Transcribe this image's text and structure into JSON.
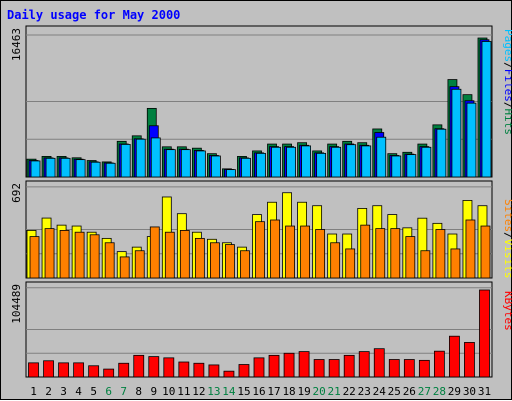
{
  "chart_data": {
    "type": "bar",
    "title": "Daily usage for May 2000",
    "x": [
      "1",
      "2",
      "3",
      "4",
      "5",
      "6",
      "7",
      "8",
      "9",
      "10",
      "11",
      "12",
      "13",
      "14",
      "15",
      "16",
      "17",
      "18",
      "19",
      "20",
      "21",
      "22",
      "23",
      "24",
      "25",
      "26",
      "27",
      "28",
      "29",
      "30",
      "31"
    ],
    "weekend_days": [
      "6",
      "7",
      "13",
      "14",
      "20",
      "21",
      "27",
      "28"
    ],
    "panels": [
      {
        "name": "hits_files_pages",
        "ymax": 16463,
        "ymax_label": "16463",
        "legend": [
          {
            "text": "Pages",
            "color": "#00c0ff"
          },
          {
            "text": "/",
            "color": "#000000"
          },
          {
            "text": "Files",
            "color": "#0000ff"
          },
          {
            "text": "/",
            "color": "#000000"
          },
          {
            "text": "Hits",
            "color": "#008040"
          }
        ],
        "series": [
          {
            "name": "Hits",
            "color": "#008040",
            "values": [
              2054,
              2370,
              2370,
              2212,
              1896,
              1738,
              4108,
              4740,
              7900,
              3476,
              3476,
              3318,
              2686,
              940,
              2370,
              3002,
              3792,
              3792,
              3950,
              3002,
              3792,
              4108,
              3950,
              5530,
              2686,
              2844,
              3792,
              6004,
              11218,
              9480,
              16000
            ]
          },
          {
            "name": "Files",
            "color": "#0000ff",
            "values": [
              1900,
              2200,
              2200,
              2050,
              1750,
              1620,
              3800,
              4400,
              5900,
              3200,
              3200,
              3060,
              2480,
              870,
              2200,
              2780,
              3500,
              3500,
              3650,
              2780,
              3500,
              3800,
              3650,
              5120,
              2480,
              2630,
              3500,
              5560,
              10400,
              8780,
              15800
            ]
          },
          {
            "name": "Pages",
            "color": "#00c0ff",
            "values": [
              1850,
              2150,
              2150,
              2000,
              1700,
              1580,
              3750,
              4350,
              4500,
              3150,
              3150,
              3000,
              2420,
              850,
              2150,
              2720,
              3420,
              3420,
              3580,
              2720,
              3420,
              3720,
              3580,
              4580,
              2420,
              2580,
              3420,
              5500,
              10100,
              8500,
              15600
            ]
          }
        ]
      },
      {
        "name": "visits_sites",
        "ymax": 692,
        "ymax_label": "692",
        "legend": [
          {
            "text": "Sites",
            "color": "#ff8000"
          },
          {
            "text": "/",
            "color": "#000000"
          },
          {
            "text": "Visits",
            "color": "#ffff00"
          }
        ],
        "series": [
          {
            "name": "Visits",
            "color": "#ffff00",
            "values": [
              370,
              466,
              411,
              404,
              356,
              308,
              205,
              240,
              322,
              630,
              500,
              356,
              301,
              274,
              240,
              493,
              589,
              663,
              589,
              562,
              342,
              342,
              541,
              562,
              493,
              390,
              465,
              425,
              342,
              603,
              562
            ]
          },
          {
            "name": "Sites",
            "color": "#ff8000",
            "values": [
              322,
              384,
              370,
              356,
              336,
              274,
              164,
              212,
              397,
              356,
              370,
              308,
              274,
              260,
              212,
              438,
              451,
              404,
              404,
              377,
              274,
              226,
              411,
              384,
              384,
              322,
              212,
              377,
              226,
              451,
              404
            ]
          }
        ]
      },
      {
        "name": "kbytes",
        "ymax": 104489,
        "ymax_label": "104489",
        "legend": [
          {
            "text": "KBytes",
            "color": "#ff0000"
          }
        ],
        "series": [
          {
            "name": "KBytes",
            "color": "#ff0000",
            "values": [
              17000,
              19500,
              17000,
              17000,
              13500,
              9500,
              16500,
              26000,
              24500,
              23000,
              18000,
              16500,
              14500,
              7000,
              15000,
              23000,
              26000,
              28500,
              30500,
              21000,
              21000,
              26000,
              30500,
              34000,
              21000,
              21000,
              20000,
              31000,
              49000,
              41500,
              104489
            ]
          }
        ]
      }
    ]
  }
}
